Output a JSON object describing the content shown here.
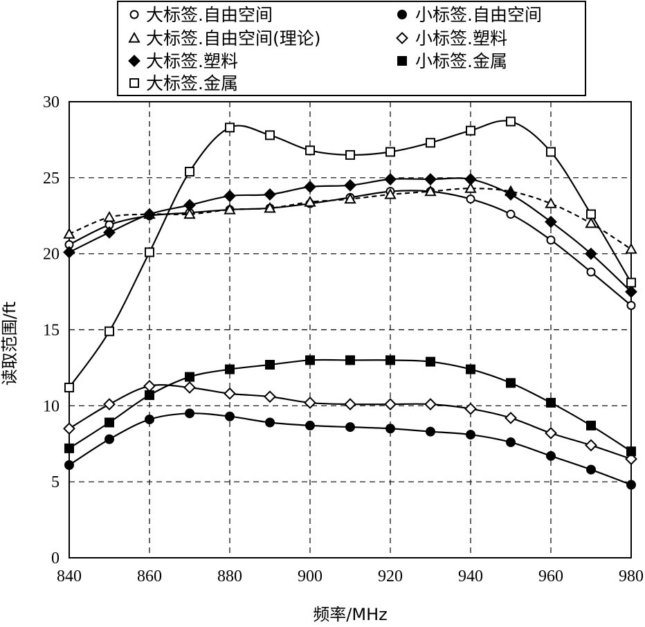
{
  "chart_data": {
    "type": "line",
    "xlabel": "频率/MHz",
    "ylabel": "读取范围/ft",
    "xlim": [
      840,
      980
    ],
    "ylim": [
      0,
      30
    ],
    "x_ticks": [
      "840",
      "860",
      "880",
      "900",
      "920",
      "940",
      "960",
      "980"
    ],
    "y_ticks": [
      "0",
      "5",
      "10",
      "15",
      "20",
      "25",
      "30"
    ],
    "grid": true,
    "legend_position": "top",
    "series": [
      {
        "name": "大标签.自由空间",
        "marker": "circle-open",
        "dash": "solid",
        "x": [
          840,
          850,
          860,
          870,
          880,
          890,
          900,
          910,
          920,
          930,
          940,
          950,
          960,
          970,
          980
        ],
        "y": [
          20.6,
          21.9,
          22.5,
          22.7,
          22.9,
          23.0,
          23.3,
          23.7,
          24.1,
          24.1,
          23.6,
          22.6,
          20.9,
          18.8,
          16.6
        ]
      },
      {
        "name": "大标签.自由空间(理论)",
        "marker": "triangle-open",
        "dash": "dashed",
        "x": [
          840,
          850,
          860,
          870,
          880,
          890,
          900,
          910,
          920,
          930,
          940,
          950,
          960,
          970,
          980
        ],
        "y": [
          21.3,
          22.4,
          22.6,
          22.6,
          22.9,
          23.0,
          23.4,
          23.6,
          23.9,
          24.1,
          24.3,
          24.1,
          23.3,
          22.0,
          20.3
        ]
      },
      {
        "name": "大标签.塑料",
        "marker": "diamond-filled",
        "dash": "solid",
        "x": [
          840,
          850,
          860,
          870,
          880,
          890,
          900,
          910,
          920,
          930,
          940,
          950,
          960,
          970,
          980
        ],
        "y": [
          20.1,
          21.4,
          22.6,
          23.2,
          23.8,
          23.9,
          24.4,
          24.5,
          24.9,
          24.9,
          24.9,
          23.9,
          22.1,
          20.0,
          17.5
        ]
      },
      {
        "name": "大标签.金属",
        "marker": "square-open",
        "dash": "solid",
        "x": [
          840,
          850,
          860,
          870,
          880,
          890,
          900,
          910,
          920,
          930,
          940,
          950,
          960,
          970,
          980
        ],
        "y": [
          11.2,
          14.9,
          20.1,
          25.4,
          28.3,
          27.8,
          26.8,
          26.5,
          26.7,
          27.3,
          28.1,
          28.7,
          26.7,
          22.6,
          18.1
        ]
      },
      {
        "name": "小标签.自由空间",
        "marker": "circle-filled",
        "dash": "solid",
        "x": [
          840,
          850,
          860,
          870,
          880,
          890,
          900,
          910,
          920,
          930,
          940,
          950,
          960,
          970,
          980
        ],
        "y": [
          6.1,
          7.8,
          9.1,
          9.5,
          9.3,
          8.9,
          8.7,
          8.6,
          8.5,
          8.3,
          8.1,
          7.6,
          6.7,
          5.8,
          4.8
        ]
      },
      {
        "name": "小标签.塑料",
        "marker": "diamond-open",
        "dash": "solid",
        "x": [
          840,
          850,
          860,
          870,
          880,
          890,
          900,
          910,
          920,
          930,
          940,
          950,
          960,
          970,
          980
        ],
        "y": [
          8.5,
          10.1,
          11.3,
          11.2,
          10.8,
          10.6,
          10.2,
          10.1,
          10.1,
          10.1,
          9.8,
          9.2,
          8.2,
          7.4,
          6.5
        ]
      },
      {
        "name": "小标签.金属",
        "marker": "square-filled",
        "dash": "solid",
        "x": [
          840,
          850,
          860,
          870,
          880,
          890,
          900,
          910,
          920,
          930,
          940,
          950,
          960,
          970,
          980
        ],
        "y": [
          7.2,
          8.9,
          10.7,
          11.9,
          12.4,
          12.7,
          13.0,
          13.0,
          13.0,
          12.9,
          12.4,
          11.5,
          10.2,
          8.7,
          7.0
        ]
      }
    ]
  }
}
